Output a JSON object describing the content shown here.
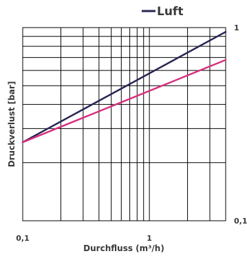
{
  "chart_data": {
    "type": "line",
    "title": "",
    "xlabel": "Durchfluss (m³/h)",
    "ylabel": "Druckverlust [bar]",
    "x_scale": "log",
    "y_scale": "log",
    "xlim": [
      0.1,
      4
    ],
    "ylim": [
      0.1,
      1
    ],
    "x_ticklabels": [
      {
        "value": 0.1,
        "label": "0,1"
      },
      {
        "value": 1,
        "label": "1"
      }
    ],
    "y_ticklabels": [
      {
        "value": 1,
        "label": "1"
      },
      {
        "value": 0.1,
        "label": "0,1"
      }
    ],
    "grid": true,
    "legend": {
      "placement": "top-right"
    },
    "series": [
      {
        "name": "Luft",
        "color": "#262553",
        "x": [
          0.1,
          4
        ],
        "y": [
          0.255,
          0.95
        ]
      },
      {
        "name": "",
        "color": "#d6307e",
        "x": [
          0.1,
          4
        ],
        "y": [
          0.255,
          0.68
        ]
      }
    ]
  }
}
